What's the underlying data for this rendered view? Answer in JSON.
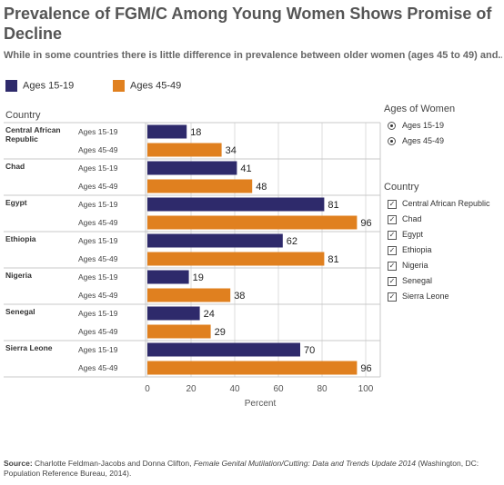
{
  "title": "Prevalence of FGM/C Among Young Women Shows Promise of Decline",
  "subtitle": "While in some countries there is little difference in prevalence between older women (ages 45 to 49) and..",
  "colors": {
    "ages_15_19": "#2e2a6b",
    "ages_45_49": "#e0801f",
    "grid": "#dcdcdc"
  },
  "chart_data": {
    "type": "bar",
    "orientation": "horizontal",
    "categories": [
      "Central African Republic",
      "Chad",
      "Egypt",
      "Ethiopia",
      "Nigeria",
      "Senegal",
      "Sierra Leone"
    ],
    "category_header": "Country",
    "series": [
      {
        "name": "Ages 15-19",
        "values": [
          18,
          41,
          81,
          62,
          19,
          24,
          70
        ]
      },
      {
        "name": "Ages 45-49",
        "values": [
          34,
          48,
          96,
          81,
          38,
          29,
          96
        ]
      }
    ],
    "xlabel": "Percent",
    "xlim": [
      0,
      100
    ],
    "xticks": [
      0,
      20,
      40,
      60,
      80,
      100
    ],
    "legend": "top-left"
  },
  "filters": {
    "ages_title": "Ages of Women",
    "ages_options": [
      "Ages 15-19",
      "Ages 45-49"
    ],
    "country_title": "Country",
    "country_options": [
      "Central African Republic",
      "Chad",
      "Egypt",
      "Ethiopia",
      "Nigeria",
      "Senegal",
      "Sierra Leone"
    ],
    "check_glyph": "✓"
  },
  "footer": {
    "source_label": "Source:",
    "source_text": " Charlotte Feldman-Jacobs and Donna Clifton, ",
    "source_title": "Female Genital Mutilation/Cutting: Data and Trends Update 2014",
    "source_tail": " (Washington, DC: Population Reference Bureau, 2014)."
  }
}
